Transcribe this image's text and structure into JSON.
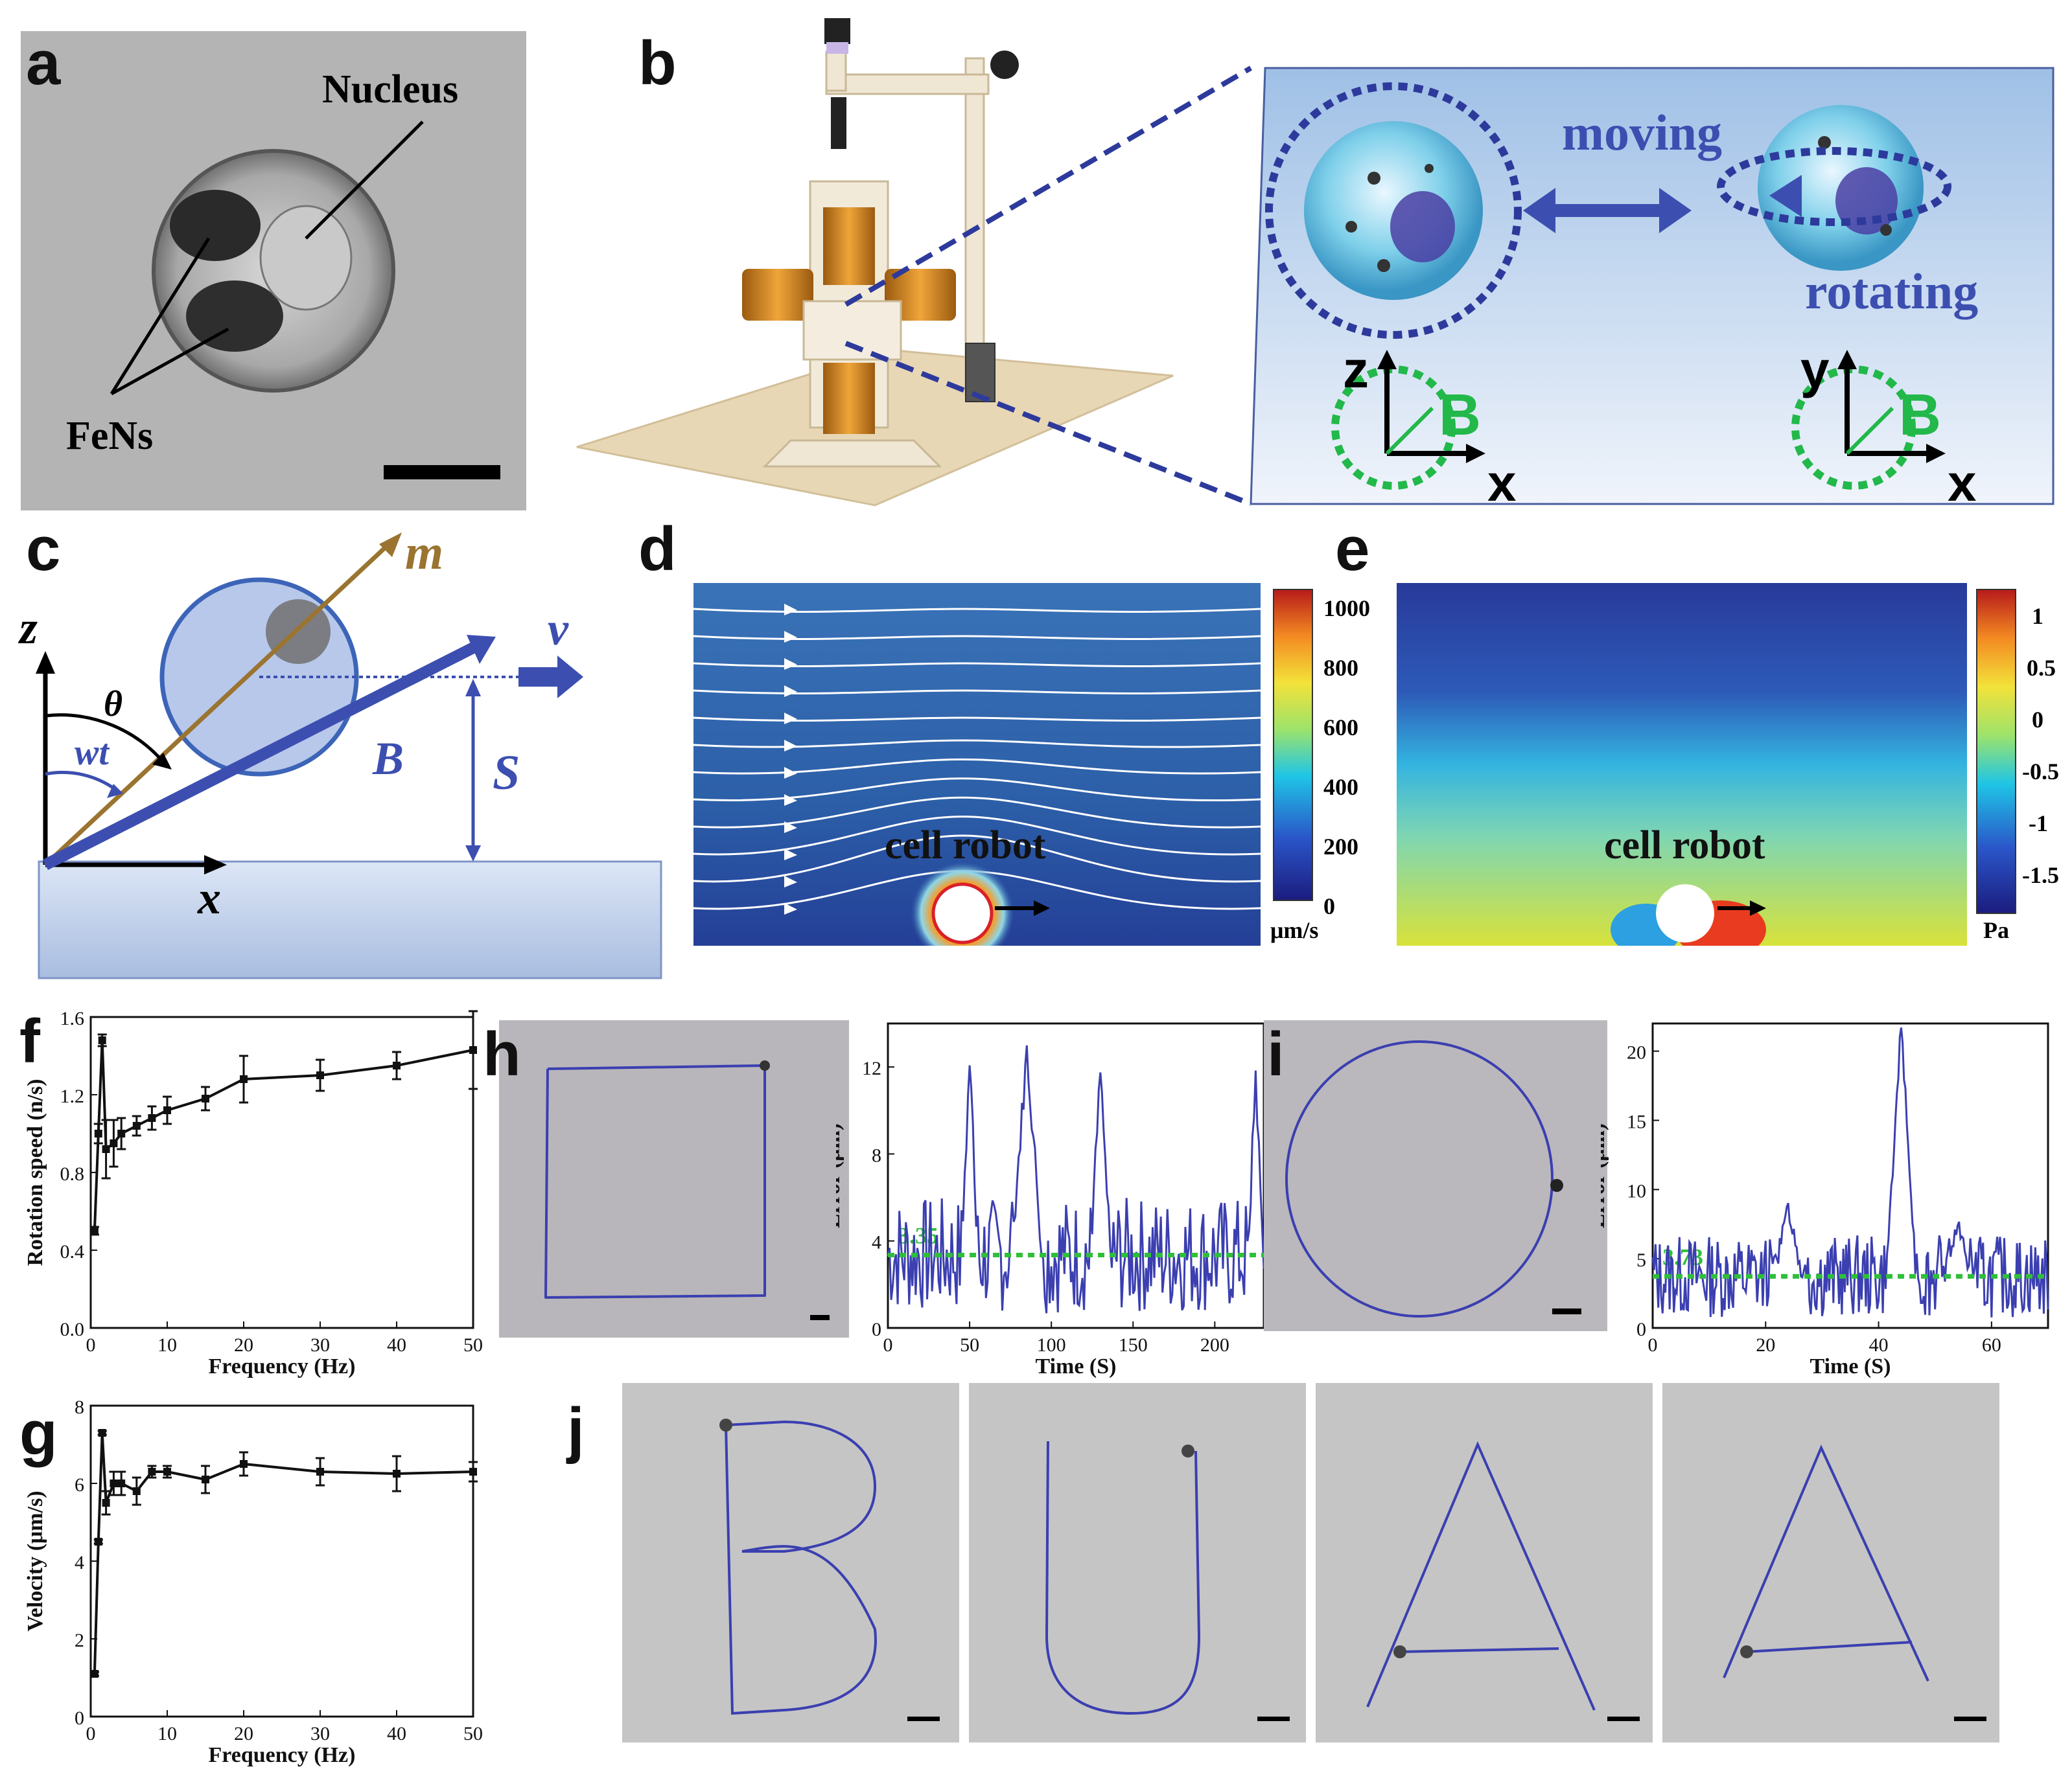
{
  "panel_labels": {
    "a": "a",
    "b": "b",
    "c": "c",
    "d": "d",
    "e": "e",
    "f": "f",
    "g": "g",
    "h": "h",
    "i": "i",
    "j": "j"
  },
  "panel_a": {
    "nucleus": "Nucleus",
    "fens": "FeNs"
  },
  "panel_b": {
    "moving": "moving",
    "rotating": "rotating",
    "axis_z": "z",
    "axis_x1": "x",
    "axis_y": "y",
    "axis_x2": "x",
    "field1": "B",
    "field2": "B"
  },
  "panel_c": {
    "m": "m",
    "theta": "θ",
    "wt": "wt",
    "B": "B",
    "v": "v",
    "S": "S",
    "z": "z",
    "x": "x"
  },
  "panel_d": {
    "label": "cell robot",
    "unit": "μm/s",
    "ticks": [
      "1000",
      "800",
      "600",
      "400",
      "200",
      "0"
    ]
  },
  "panel_e": {
    "label": "cell robot",
    "unit": "Pa",
    "ticks": [
      "1",
      "0.5",
      "0",
      "-0.5",
      "-1",
      "-1.5"
    ]
  },
  "colors": {
    "trace": "#3b3fb0",
    "threshold": "#2fbf3a",
    "plot_line": "#111111",
    "field_green": "#22b84a",
    "arrow_blue": "#3c4fb0"
  },
  "chart_data": [
    {
      "id": "f",
      "type": "line",
      "xlabel": "Frequency (Hz)",
      "ylabel": "Rotation speed (n/s)",
      "xlim": [
        0,
        50
      ],
      "ylim": [
        0.0,
        1.6
      ],
      "xticks": [
        "0",
        "10",
        "20",
        "30",
        "40",
        "50"
      ],
      "yticks": [
        "0.0",
        "0.4",
        "0.8",
        "1.2",
        "1.6"
      ],
      "x": [
        0.5,
        1,
        1.5,
        2,
        3,
        4,
        6,
        8,
        10,
        15,
        20,
        30,
        40,
        50
      ],
      "y": [
        0.5,
        1.0,
        1.48,
        0.92,
        0.95,
        1.0,
        1.04,
        1.08,
        1.12,
        1.18,
        1.28,
        1.3,
        1.35,
        1.43
      ],
      "err": [
        0.02,
        0.05,
        0.03,
        0.15,
        0.12,
        0.08,
        0.05,
        0.06,
        0.07,
        0.06,
        0.12,
        0.08,
        0.07,
        0.2
      ]
    },
    {
      "id": "g",
      "type": "line",
      "xlabel": "Frequency (Hz)",
      "ylabel": "Velocity (μm/s)",
      "xlim": [
        0,
        50
      ],
      "ylim": [
        0,
        8
      ],
      "xticks": [
        "0",
        "10",
        "20",
        "30",
        "40",
        "50"
      ],
      "yticks": [
        "0",
        "2",
        "4",
        "6",
        "8"
      ],
      "x": [
        0.5,
        1,
        1.5,
        2,
        3,
        4,
        6,
        8,
        10,
        15,
        20,
        30,
        40,
        50
      ],
      "y": [
        1.1,
        4.5,
        7.3,
        5.5,
        6.0,
        6.0,
        5.8,
        6.3,
        6.3,
        6.1,
        6.5,
        6.3,
        6.25,
        6.3
      ],
      "err": [
        0.05,
        0.05,
        0.05,
        0.3,
        0.3,
        0.3,
        0.35,
        0.15,
        0.15,
        0.35,
        0.3,
        0.35,
        0.45,
        0.25
      ]
    },
    {
      "id": "h",
      "type": "line",
      "xlabel": "Time (S)",
      "ylabel": "Error (μm)",
      "xlim": [
        0,
        230
      ],
      "ylim": [
        0,
        14
      ],
      "xticks": [
        "0",
        "50",
        "100",
        "150",
        "200"
      ],
      "yticks": [
        "0",
        "4",
        "8",
        "12"
      ],
      "threshold": 3.35,
      "threshold_label": "3.35"
    },
    {
      "id": "i",
      "type": "line",
      "xlabel": "Time (S)",
      "ylabel": "Error (μm)",
      "xlim": [
        0,
        70
      ],
      "ylim": [
        0,
        22
      ],
      "xticks": [
        "0",
        "20",
        "40",
        "60"
      ],
      "yticks": [
        "0",
        "5",
        "10",
        "15",
        "20"
      ],
      "threshold": 3.73,
      "threshold_label": "3.73"
    }
  ]
}
